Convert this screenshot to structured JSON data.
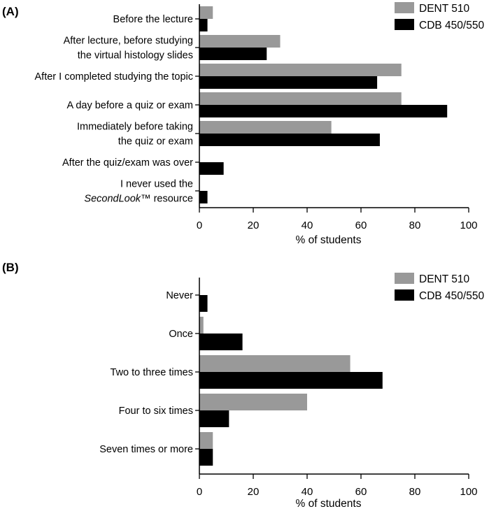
{
  "chart_data": [
    {
      "type": "bar",
      "orientation": "horizontal",
      "panel_label": "(A)",
      "categories": [
        [
          "Before the lecture"
        ],
        [
          "After lecture, before studying",
          "the virtual histology slides"
        ],
        [
          "After I completed studying the topic"
        ],
        [
          "A day before a quiz or exam"
        ],
        [
          "Immediately before taking",
          "the quiz or exam"
        ],
        [
          "After the quiz/exam was over"
        ],
        [
          "I never used the",
          "SecondLook™ resource"
        ]
      ],
      "series": [
        {
          "name": "DENT 510",
          "color": "#999999",
          "values": [
            5,
            30,
            75,
            75,
            49,
            0,
            0
          ]
        },
        {
          "name": "CDB 450/550",
          "color": "#000000",
          "values": [
            3,
            25,
            66,
            92,
            67,
            9,
            3
          ]
        }
      ],
      "xlabel": "% of students",
      "xlim": [
        0,
        100
      ],
      "xticks": [
        0,
        20,
        40,
        60,
        80,
        100
      ],
      "legend_position": "top-right",
      "grid": false
    },
    {
      "type": "bar",
      "orientation": "horizontal",
      "panel_label": "(B)",
      "categories": [
        [
          "Never"
        ],
        [
          "Once"
        ],
        [
          "Two to three times"
        ],
        [
          "Four to six times"
        ],
        [
          "Seven times or more"
        ]
      ],
      "series": [
        {
          "name": "DENT 510",
          "color": "#999999",
          "values": [
            0,
            1.5,
            56,
            40,
            5
          ]
        },
        {
          "name": "CDB 450/550",
          "color": "#000000",
          "values": [
            3,
            16,
            68,
            11,
            5
          ]
        }
      ],
      "xlabel": "% of students",
      "xlim": [
        0,
        100
      ],
      "xticks": [
        0,
        20,
        40,
        60,
        80,
        100
      ],
      "legend_position": "top-right",
      "grid": false
    }
  ]
}
